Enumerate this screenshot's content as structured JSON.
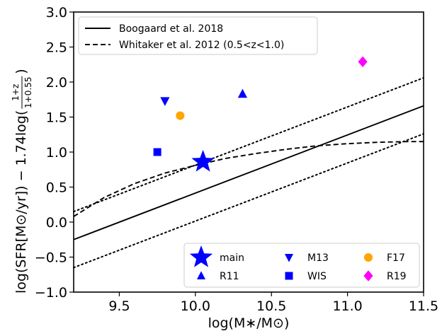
{
  "chart_data": {
    "type": "scatter",
    "xlabel": "log(M∗/M⊙)",
    "ylabel": {
      "main": "log(SFR[M⊙/yr]) − 1.74log(",
      "frac_num": "1+z",
      "frac_den": "1+0.55",
      "close": ")"
    },
    "xlim": [
      9.2,
      11.5
    ],
    "ylim": [
      -1.0,
      3.0
    ],
    "xticks": [
      "9.5",
      "10.0",
      "10.5",
      "11.0",
      "11.5"
    ],
    "yticks": [
      "−1.0",
      "−0.5",
      "0.0",
      "0.5",
      "1.0",
      "1.5",
      "2.0",
      "2.5",
      "3.0"
    ],
    "xtick_values": [
      9.5,
      10.0,
      10.5,
      11.0,
      11.5
    ],
    "ytick_values": [
      -1.0,
      -0.5,
      0.0,
      0.5,
      1.0,
      1.5,
      2.0,
      2.5,
      3.0
    ],
    "grid": false,
    "lines": [
      {
        "name": "Boogaard et al. 2018",
        "style": "solid",
        "x": [
          9.2,
          11.5
        ],
        "y": [
          -0.25,
          1.66
        ]
      },
      {
        "name": "",
        "style": "dotted",
        "x": [
          9.2,
          11.5
        ],
        "y": [
          0.15,
          2.06
        ]
      },
      {
        "name": "",
        "style": "dotted",
        "x": [
          9.2,
          11.5
        ],
        "y": [
          -0.65,
          1.26
        ]
      },
      {
        "name": "Whitaker et al. 2012 (0.5<z<1.0)",
        "style": "dashed",
        "x": [
          9.2,
          9.4,
          9.6,
          9.8,
          10.0,
          10.2,
          10.4,
          10.6,
          10.8,
          11.0,
          11.2,
          11.4,
          11.5
        ],
        "y": [
          0.08,
          0.35,
          0.55,
          0.7,
          0.81,
          0.91,
          0.98,
          1.04,
          1.09,
          1.12,
          1.14,
          1.15,
          1.15
        ]
      }
    ],
    "points": [
      {
        "name": "main",
        "marker": "star",
        "color": "#0000ff",
        "x": 10.05,
        "y": 0.86
      },
      {
        "name": "M13",
        "marker": "triangle-down",
        "color": "#0000ff",
        "x": 9.8,
        "y": 1.73
      },
      {
        "name": "F17",
        "marker": "circle",
        "color": "#ffa500",
        "x": 9.9,
        "y": 1.52
      },
      {
        "name": "R11",
        "marker": "triangle-up",
        "color": "#0000ff",
        "x": 10.31,
        "y": 1.83
      },
      {
        "name": "WIS",
        "marker": "square",
        "color": "#0000ff",
        "x": 9.75,
        "y": 1.0
      },
      {
        "name": "R19",
        "marker": "diamond",
        "color": "#ff00ff",
        "x": 11.1,
        "y": 2.29
      }
    ],
    "legend_lines": [
      "Boogaard et al. 2018",
      "Whitaker et al. 2012 (0.5<z<1.0)"
    ],
    "legend_lines_placement": "top-left",
    "legend_markers": [
      [
        "main",
        "M13",
        "F17"
      ],
      [
        "R11",
        "WIS",
        "R19"
      ]
    ],
    "legend_markers_placement": "bottom-right"
  }
}
